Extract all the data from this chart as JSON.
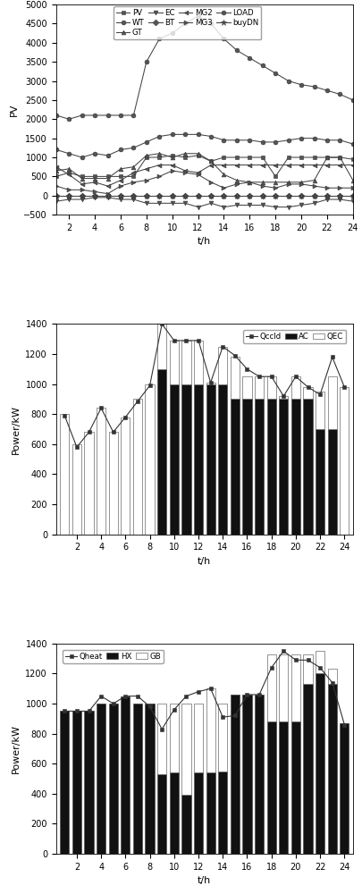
{
  "t": [
    1,
    2,
    3,
    4,
    5,
    6,
    7,
    8,
    9,
    10,
    11,
    12,
    13,
    14,
    15,
    16,
    17,
    18,
    19,
    20,
    21,
    22,
    23,
    24
  ],
  "chart1": {
    "PV": [
      500,
      600,
      500,
      500,
      500,
      500,
      500,
      1000,
      1000,
      1050,
      1000,
      1050,
      900,
      1000,
      1000,
      1000,
      1000,
      500,
      1000,
      1000,
      1000,
      1000,
      1000,
      950
    ],
    "WT": [
      2100,
      2000,
      2100,
      2100,
      2100,
      2100,
      2100,
      3500,
      4100,
      4250,
      4500,
      4700,
      4500,
      4100,
      3800,
      3600,
      3400,
      3200,
      3000,
      2900,
      2850,
      2750,
      2650,
      2500
    ],
    "GT": [
      650,
      700,
      450,
      450,
      450,
      700,
      750,
      1050,
      1100,
      1000,
      1100,
      1100,
      900,
      550,
      400,
      350,
      350,
      350,
      350,
      350,
      400,
      1000,
      1000,
      400
    ],
    "EC": [
      -150,
      -100,
      -100,
      -50,
      -50,
      -100,
      -100,
      -200,
      -200,
      -200,
      -200,
      -300,
      -200,
      -300,
      -250,
      -250,
      -250,
      -300,
      -300,
      -250,
      -200,
      -100,
      -100,
      -150
    ],
    "BT": [
      0,
      0,
      0,
      0,
      0,
      0,
      0,
      0,
      0,
      0,
      0,
      0,
      0,
      0,
      0,
      0,
      0,
      0,
      0,
      0,
      0,
      0,
      0,
      0
    ],
    "MG2": [
      750,
      550,
      300,
      350,
      250,
      400,
      600,
      700,
      800,
      800,
      650,
      600,
      800,
      800,
      800,
      800,
      800,
      800,
      800,
      800,
      800,
      800,
      800,
      800
    ],
    "MG3": [
      250,
      150,
      150,
      100,
      50,
      250,
      350,
      400,
      500,
      650,
      600,
      550,
      350,
      200,
      300,
      350,
      250,
      200,
      300,
      300,
      250,
      200,
      200,
      200
    ],
    "LOAD": [
      1200,
      1100,
      1000,
      1100,
      1050,
      1200,
      1250,
      1400,
      1550,
      1600,
      1600,
      1600,
      1550,
      1450,
      1450,
      1450,
      1400,
      1400,
      1450,
      1500,
      1500,
      1450,
      1450,
      1350
    ],
    "buyDN": [
      0,
      0,
      0,
      0,
      0,
      0,
      0,
      0,
      0,
      0,
      0,
      0,
      0,
      0,
      0,
      0,
      0,
      0,
      0,
      0,
      0,
      0,
      0,
      0
    ]
  },
  "chart2": {
    "AC": [
      0,
      0,
      0,
      0,
      0,
      0,
      0,
      0,
      1100,
      1000,
      1000,
      1000,
      1000,
      1000,
      900,
      900,
      900,
      900,
      900,
      900,
      900,
      700,
      700,
      0
    ],
    "QEC": [
      800,
      600,
      680,
      840,
      680,
      780,
      900,
      1000,
      300,
      290,
      290,
      290,
      10,
      250,
      280,
      150,
      150,
      150,
      20,
      150,
      80,
      250,
      350,
      980
    ],
    "Qccld": [
      790,
      580,
      680,
      840,
      680,
      780,
      885,
      990,
      1400,
      1290,
      1290,
      1290,
      1010,
      1250,
      1190,
      1100,
      1050,
      1050,
      920,
      1050,
      980,
      930,
      1180,
      980
    ]
  },
  "chart3": {
    "HX": [
      950,
      950,
      950,
      1000,
      1000,
      1050,
      1000,
      1000,
      530,
      540,
      390,
      540,
      540,
      550,
      1060,
      1060,
      1060,
      880,
      880,
      880,
      1130,
      1200,
      1130,
      870
    ],
    "GB": [
      0,
      0,
      0,
      0,
      0,
      0,
      0,
      0,
      470,
      460,
      610,
      460,
      560,
      450,
      0,
      0,
      0,
      450,
      450,
      450,
      200,
      150,
      100,
      0
    ],
    "Qheat": [
      950,
      950,
      950,
      1050,
      1000,
      1050,
      1050,
      980,
      830,
      960,
      1050,
      1080,
      1100,
      910,
      920,
      1060,
      1060,
      1240,
      1350,
      1290,
      1290,
      1240,
      1140,
      860
    ]
  }
}
